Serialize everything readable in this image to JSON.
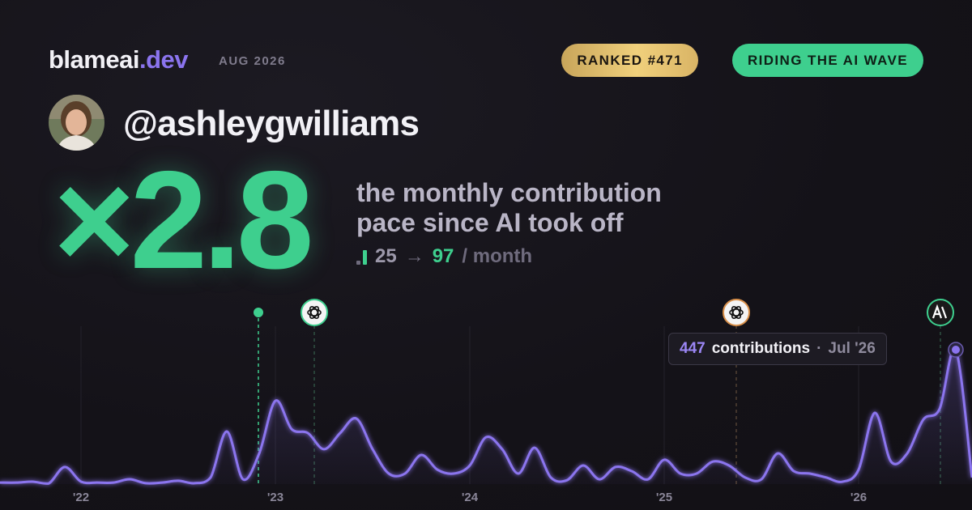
{
  "header": {
    "brand": "blameai",
    "brand_tld": ".dev",
    "date": "AUG 2026",
    "badges": [
      "RANKED #471",
      "RIDING THE AI WAVE"
    ]
  },
  "profile": {
    "username": "@ashleygwilliams"
  },
  "hero": {
    "multiplier": "×2.8",
    "description": "the monthly contribution pace since AI took off",
    "before": 25,
    "arrow": "→",
    "after": 97,
    "unit": "/ month"
  },
  "tooltip": {
    "label": "contributions",
    "separator": "·",
    "date": "Jul '26"
  },
  "chart_data": {
    "type": "area",
    "color": "#8b74ee",
    "categories": [
      null,
      null,
      null,
      null,
      null,
      "'22",
      null,
      null,
      null,
      null,
      null,
      null,
      null,
      null,
      null,
      null,
      null,
      "'23",
      null,
      null,
      null,
      null,
      null,
      null,
      null,
      null,
      null,
      null,
      null,
      "'24",
      null,
      null,
      null,
      null,
      null,
      null,
      null,
      null,
      null,
      null,
      null,
      "'25",
      null,
      null,
      null,
      null,
      null,
      null,
      null,
      null,
      null,
      null,
      null,
      "'26",
      null,
      null,
      null,
      null,
      null,
      null,
      null
    ],
    "values": [
      5,
      5,
      8,
      2,
      57,
      8,
      5,
      5,
      16,
      3,
      5,
      11,
      3,
      22,
      175,
      16,
      102,
      277,
      183,
      170,
      116,
      170,
      218,
      116,
      35,
      35,
      97,
      48,
      35,
      62,
      156,
      116,
      35,
      121,
      22,
      13,
      62,
      16,
      57,
      43,
      16,
      81,
      35,
      35,
      75,
      62,
      22,
      16,
      102,
      43,
      35,
      22,
      8,
      48,
      237,
      75,
      102,
      215,
      250,
      447,
      22
    ]
  }
}
